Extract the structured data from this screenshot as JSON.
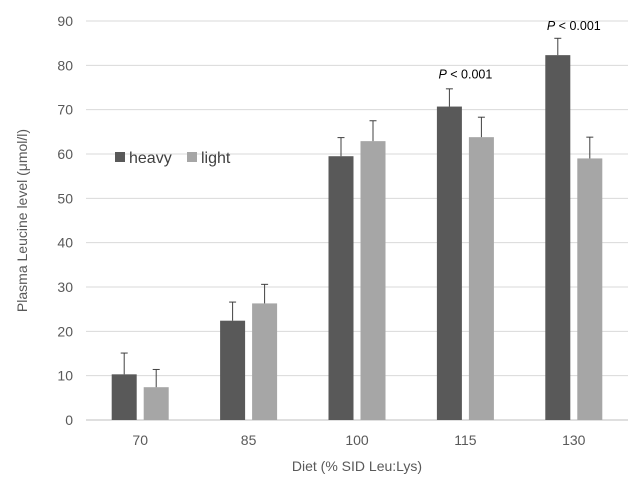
{
  "chart_data": {
    "type": "bar",
    "title": "",
    "xlabel": "Diet (% SID Leu:Lys)",
    "ylabel": "Plasma Leucine level (μmol/l)",
    "categories": [
      "70",
      "85",
      "100",
      "115",
      "130"
    ],
    "ylim": [
      0,
      90
    ],
    "yticks": [
      "0",
      "10",
      "20",
      "30",
      "40",
      "50",
      "60",
      "70",
      "80",
      "90"
    ],
    "grid": true,
    "legend_position": "left-middle",
    "series": [
      {
        "name": "heavy",
        "color": "#595959",
        "values": [
          10.3,
          22.4,
          59.5,
          70.7,
          82.3
        ],
        "errors": [
          4.8,
          4.2,
          4.2,
          4.0,
          3.8
        ]
      },
      {
        "name": "light",
        "color": "#a6a6a6",
        "values": [
          7.4,
          26.3,
          62.9,
          63.8,
          59.0
        ],
        "errors": [
          4.0,
          4.3,
          4.6,
          4.5,
          4.8
        ]
      }
    ],
    "annotations": [
      {
        "category": "115",
        "italic": "P",
        "rest": " < 0.001",
        "y_value": 77
      },
      {
        "category": "130",
        "italic": "P",
        "rest": " < 0.001",
        "y_value": 88
      }
    ]
  }
}
